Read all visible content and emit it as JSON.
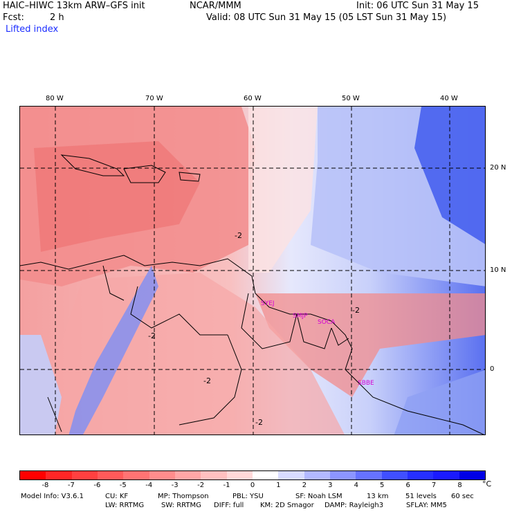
{
  "header": {
    "model_title": "HAIC–HIWC 13km ARW–GFS init",
    "org": "NCAR/MMM",
    "init": "Init: 06 UTC Sun 31 May 15",
    "fcst_label": "Fcst:",
    "fcst_value": "2 h",
    "valid": "Valid: 08 UTC Sun 31 May 15 (05 LST Sun 31 May 15)",
    "field": "Lifted index"
  },
  "map": {
    "lon_labels": [
      "80 W",
      "70 W",
      "60 W",
      "50 W",
      "40 W"
    ],
    "lon_values": [
      -80,
      -70,
      -60,
      -50,
      -40
    ],
    "lat_labels": [
      "20 N",
      "10 N",
      "0"
    ],
    "lat_values": [
      20,
      10,
      0
    ],
    "stations": [
      "SYEJ",
      "SMJP",
      "SOCA",
      "SBBE"
    ],
    "contour_label": "-2",
    "colors": {
      "warm": "#f4a0a0",
      "warm_strong": "#ee7070",
      "cool": "#c8d0fa",
      "cool_strong": "#4060f0",
      "station": "#d400d4"
    }
  },
  "colorbar": {
    "labels": [
      "-8",
      "-7",
      "-6",
      "-5",
      "-4",
      "-3",
      "-2",
      "-1",
      "0",
      "1",
      "2",
      "3",
      "4",
      "5",
      "6",
      "7",
      "8"
    ],
    "unit": "°C",
    "colors": [
      "#ff0000",
      "#ff2626",
      "#ff4040",
      "#ff5a5a",
      "#ff7373",
      "#ff8c8c",
      "#ffa6a6",
      "#ffc0c0",
      "#ffd9d9",
      "#ffffff",
      "#d9dcff",
      "#b3b9ff",
      "#8c95ff",
      "#6672ff",
      "#404fff",
      "#262fff",
      "#1a1aff",
      "#0000e6"
    ]
  },
  "footer": {
    "line1": [
      "Model Info: V3.6.1",
      "CU: KF",
      "MP: Thompson",
      "PBL: YSU",
      "SF: Noah LSM",
      "13 km",
      "51 levels",
      "60 sec"
    ],
    "line2": [
      "LW: RRTMG",
      "SW: RRTMG",
      "DIFF: full",
      "KM: 2D Smagor",
      "DAMP: Rayleigh3",
      "SFLAY: MM5"
    ]
  }
}
